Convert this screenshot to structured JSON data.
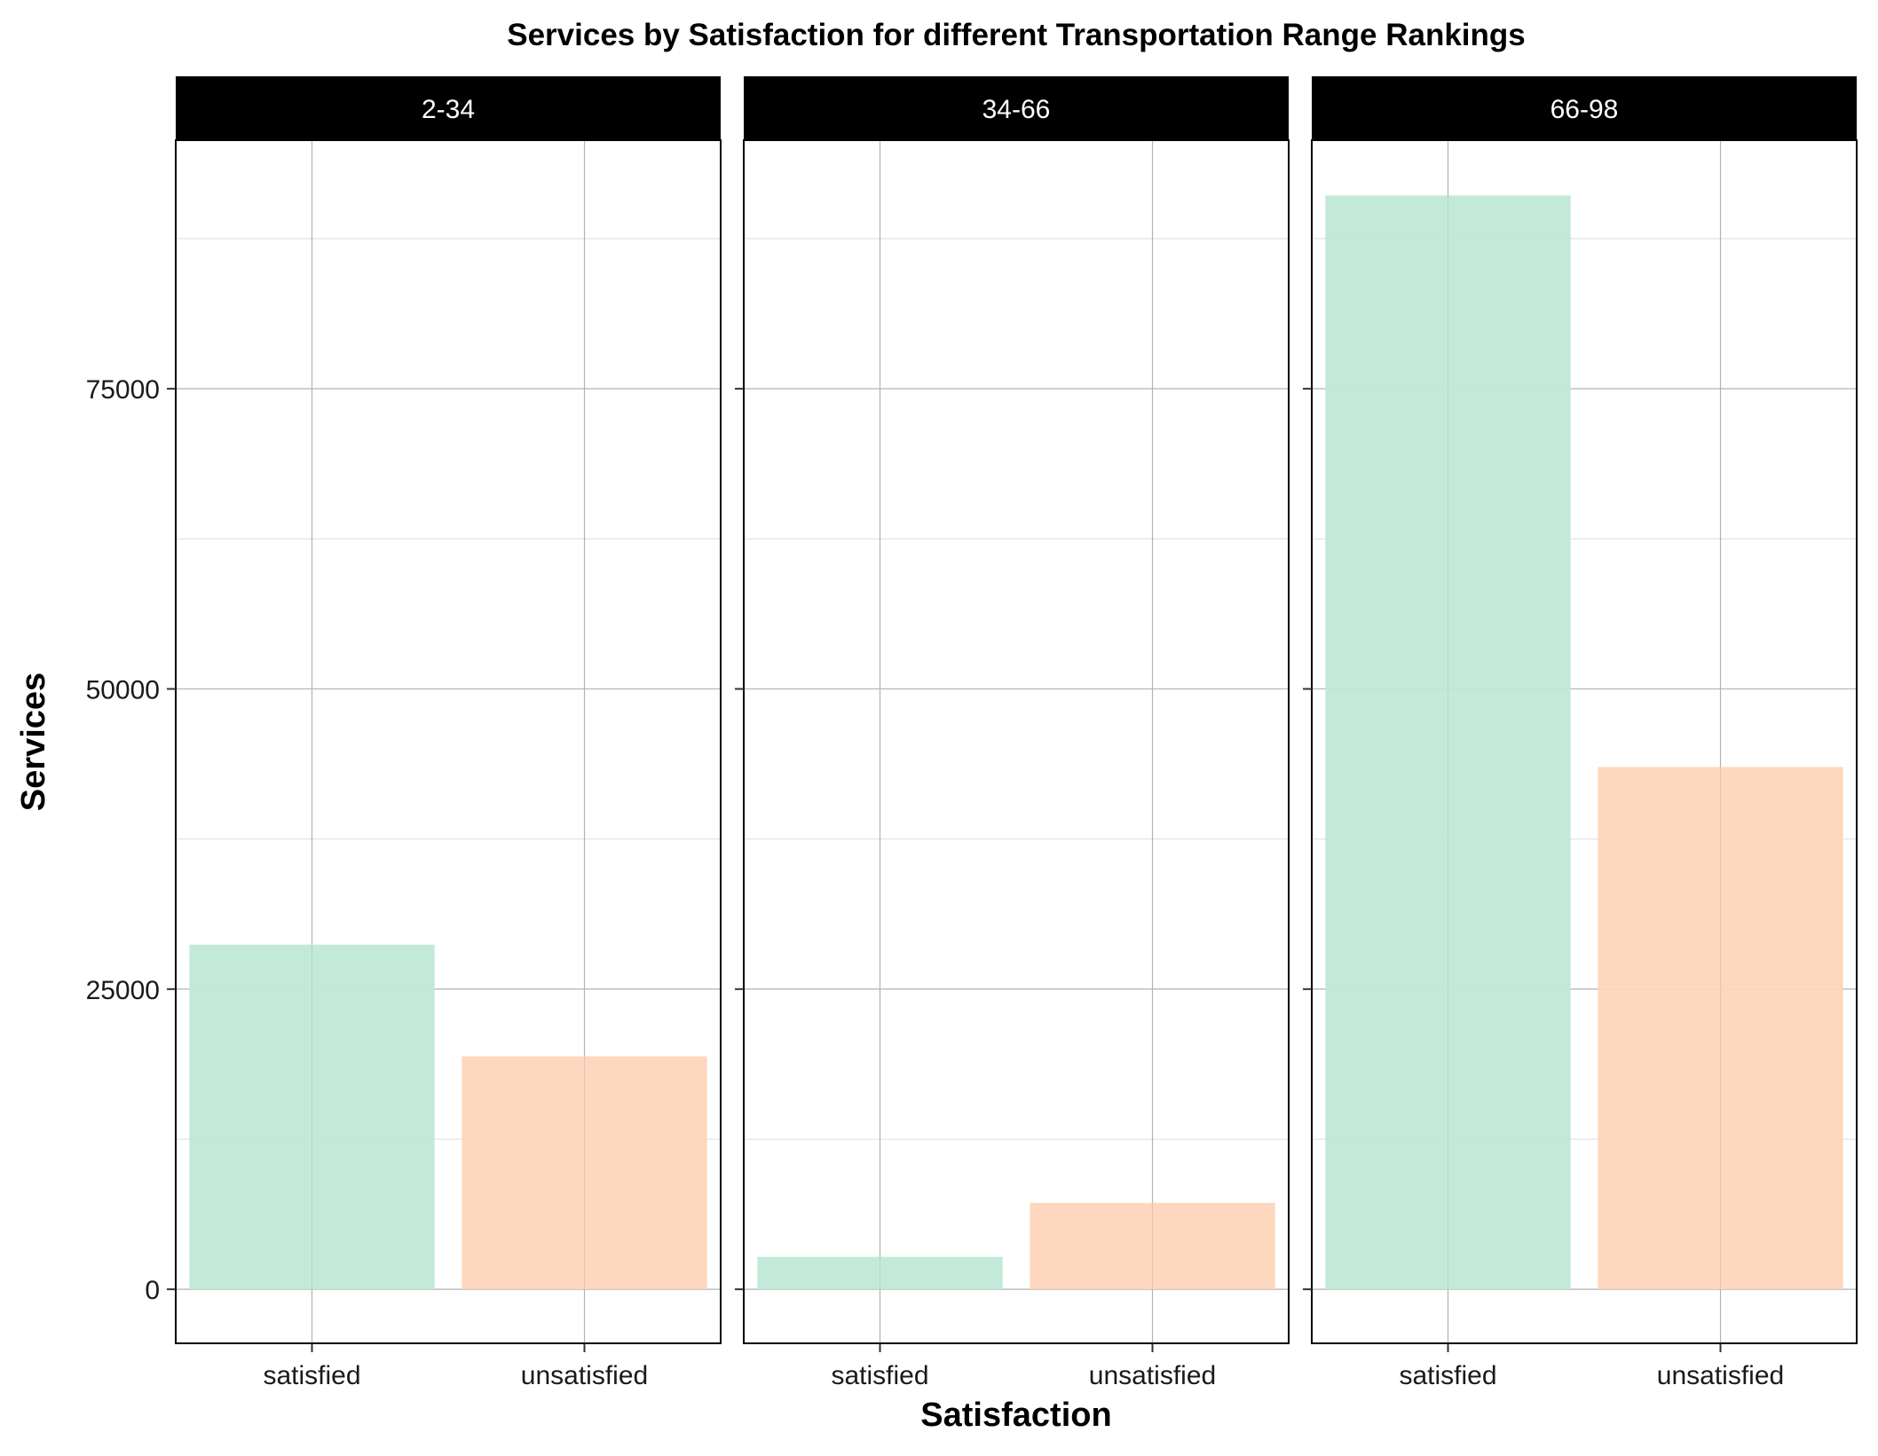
{
  "chart_data": {
    "type": "bar",
    "title": "Services by Satisfaction for different Transportation Range Rankings",
    "xlabel": "Satisfaction",
    "ylabel": "Services",
    "categories": [
      "satisfied",
      "unsatisfied"
    ],
    "facets": [
      {
        "label": "2-34",
        "values": [
          28700,
          19400
        ]
      },
      {
        "label": "34-66",
        "values": [
          2700,
          7200
        ]
      },
      {
        "label": "66-98",
        "values": [
          91100,
          43500
        ]
      }
    ],
    "ylim": [
      -4500,
      95700
    ],
    "yticks": [
      0,
      25000,
      50000,
      75000
    ],
    "grid": true,
    "legend": "none",
    "colors": {
      "satisfied": "#c0e8d6",
      "unsatisfied": "#fdd5ba",
      "strip_bg": "#000000",
      "strip_text": "#ffffff",
      "grid_major": "#b3b3b3",
      "grid_minor": "#dedede",
      "panel_border": "#000000"
    }
  }
}
